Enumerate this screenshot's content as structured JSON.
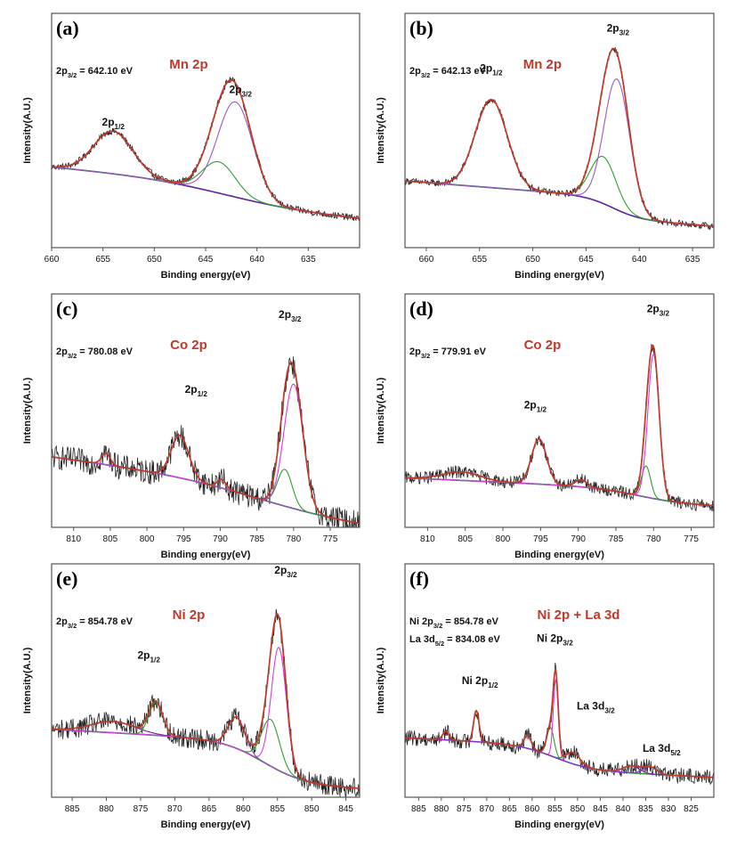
{
  "chart_data": [
    {
      "type": "line",
      "panel": "(a)",
      "title": "Mn 2p",
      "notes": [
        [
          "2p",
          "3/2",
          "= 642.10 eV"
        ]
      ],
      "xlabel": "Binding energy(eV)",
      "ylabel": "Intensity(A.U.)",
      "xlim": [
        660,
        630
      ],
      "xticks": [
        660,
        655,
        650,
        645,
        640,
        635
      ],
      "noise": 0.015,
      "background": {
        "a": 0.57,
        "b": 0.2,
        "step": 0.17,
        "center": 643,
        "width": 4
      },
      "peaks": [
        {
          "name": "2p1/2",
          "center": 654.0,
          "height": 0.3,
          "width": 1.9
        },
        {
          "name": "2p3/2 satellite",
          "center": 643.7,
          "height": 0.22,
          "width": 1.6
        },
        {
          "name": "2p3/2",
          "center": 642.1,
          "height": 0.67,
          "width": 1.7
        }
      ],
      "peak_labels": [
        {
          "text": [
            "2p",
            "1/2"
          ],
          "x": 654.0,
          "y": 0.86
        },
        {
          "text": [
            "2p",
            "3/2"
          ],
          "x": 641.6,
          "y": 1.09
        }
      ]
    },
    {
      "type": "line",
      "panel": "(b)",
      "title": "Mn 2p",
      "notes": [
        [
          "2p",
          "3/2",
          "= 642.13 eV"
        ]
      ],
      "xlabel": "Binding energy(eV)",
      "ylabel": "Intensity(A.U.)",
      "xlim": [
        662,
        633
      ],
      "xticks": [
        660,
        655,
        650,
        645,
        640,
        635
      ],
      "noise": 0.015,
      "background": {
        "a": 0.47,
        "b": 0.17,
        "step": 0.15,
        "center": 642.5,
        "width": 1.3
      },
      "peaks": [
        {
          "name": "2p1/2",
          "center": 653.9,
          "height": 0.62,
          "width": 1.5
        },
        {
          "name": "2p3/2 satellite",
          "center": 643.4,
          "height": 0.33,
          "width": 1.2
        },
        {
          "name": "2p3/2",
          "center": 642.1,
          "height": 0.92,
          "width": 1.2
        }
      ],
      "peak_labels": [
        {
          "text": [
            "2p",
            "1/2"
          ],
          "x": 653.9,
          "y": 1.24
        },
        {
          "text": [
            "2p",
            "3/2"
          ],
          "x": 642.0,
          "y": 1.52
        }
      ]
    },
    {
      "type": "line",
      "panel": "(c)",
      "title": "Co 2p",
      "notes": [
        [
          "2p",
          "3/2",
          "= 780.08 eV"
        ]
      ],
      "xlabel": "Binding energy(eV)",
      "ylabel": "Intensity(A.U.)",
      "xlim": [
        813,
        771
      ],
      "xticks": [
        810,
        805,
        800,
        795,
        790,
        785,
        780,
        775
      ],
      "noise": 0.055,
      "background": {
        "a": 0.5,
        "b": 0.29,
        "step": 0.2,
        "center": 785,
        "width": 6
      },
      "peaks": [
        {
          "name": "satellite",
          "center": 805.6,
          "height": 0.08,
          "width": 0.6
        },
        {
          "name": "2p1/2",
          "center": 795.5,
          "height": 0.3,
          "width": 1.2
        },
        {
          "name": "satellite",
          "center": 789.8,
          "height": 0.06,
          "width": 0.6
        },
        {
          "name": "2p3/2 shoulder",
          "center": 781.2,
          "height": 0.26,
          "width": 1.0
        },
        {
          "name": "2p3/2",
          "center": 780.0,
          "height": 0.88,
          "width": 1.3
        }
      ],
      "peak_labels": [
        {
          "text": [
            "2p",
            "1/2"
          ],
          "x": 793.3,
          "y": 0.95
        },
        {
          "text": [
            "2p",
            "3/2"
          ],
          "x": 780.5,
          "y": 1.48
        }
      ]
    },
    {
      "type": "line",
      "panel": "(d)",
      "title": "Co 2p",
      "notes": [
        [
          "2p",
          "3/2",
          "= 779.91 eV"
        ]
      ],
      "xlabel": "Binding energy(eV)",
      "ylabel": "Intensity(A.U.)",
      "xlim": [
        813,
        772
      ],
      "xticks": [
        810,
        805,
        800,
        795,
        790,
        785,
        780,
        775
      ],
      "noise": 0.028,
      "background": {
        "a": 0.35,
        "b": 0.1,
        "step": 0.1,
        "center": 782,
        "width": 3
      },
      "peaks": [
        {
          "name": "satellite",
          "center": 805.5,
          "height": 0.06,
          "width": 2.5
        },
        {
          "name": "2p1/2",
          "center": 795.2,
          "height": 0.32,
          "width": 1.0
        },
        {
          "name": "satellite",
          "center": 789.6,
          "height": 0.05,
          "width": 0.8
        },
        {
          "name": "2p3/2 shoulder",
          "center": 781.0,
          "height": 0.22,
          "width": 0.6
        },
        {
          "name": "2p3/2",
          "center": 780.0,
          "height": 1.02,
          "width": 0.75
        }
      ],
      "peak_labels": [
        {
          "text": [
            "2p",
            "1/2"
          ],
          "x": 795.7,
          "y": 0.84
        },
        {
          "text": [
            "2p",
            "3/2"
          ],
          "x": 779.4,
          "y": 1.52
        }
      ]
    },
    {
      "type": "line",
      "panel": "(e)",
      "title": "Ni 2p",
      "notes": [
        [
          "2p",
          "3/2",
          "= 854.78 eV"
        ]
      ],
      "xlabel": "Binding energy(eV)",
      "ylabel": "Intensity(A.U.)",
      "xlim": [
        888,
        843
      ],
      "xticks": [
        885,
        880,
        875,
        870,
        865,
        860,
        855,
        850,
        845
      ],
      "noise": 0.045,
      "background": {
        "a": 0.48,
        "b": 0.12,
        "step": 0.3,
        "center": 857,
        "width": 3
      },
      "peaks": [
        {
          "name": "satellite",
          "center": 879.0,
          "height": 0.08,
          "width": 3.2
        },
        {
          "name": "2p1/2",
          "center": 872.8,
          "height": 0.23,
          "width": 1.0
        },
        {
          "name": "satellite",
          "center": 861.0,
          "height": 0.22,
          "width": 1.2
        },
        {
          "name": "2p3/2 shoulder",
          "center": 856.0,
          "height": 0.33,
          "width": 1.3
        },
        {
          "name": "2p3/2",
          "center": 854.8,
          "height": 0.87,
          "width": 1.1
        }
      ],
      "peak_labels": [
        {
          "text": [
            "2p",
            "1/2"
          ],
          "x": 873.8,
          "y": 0.98
        },
        {
          "text": [
            "2p",
            "3/2"
          ],
          "x": 853.8,
          "y": 1.58
        }
      ]
    },
    {
      "type": "line",
      "panel": "(f)",
      "title": "Ni 2p + La 3d",
      "notes": [
        [
          "Ni 2p",
          "3/2",
          "= 854.78 eV"
        ],
        [
          "La 3d",
          "5/2",
          "= 834.08 eV"
        ]
      ],
      "xlabel": "Binding energy(eV)",
      "ylabel": "Intensity(A.U.)",
      "xlim": [
        888,
        820
      ],
      "xticks": [
        885,
        880,
        875,
        870,
        865,
        860,
        855,
        850,
        845,
        840,
        835,
        830,
        825
      ],
      "noise": 0.035,
      "background": {
        "a": 0.42,
        "b": 0.11,
        "step": 0.17,
        "center": 855,
        "width": 4
      },
      "peaks": [
        {
          "name": "satellite",
          "center": 879.0,
          "height": 0.06,
          "width": 0.7
        },
        {
          "name": "Ni 2p1/2",
          "center": 872.3,
          "height": 0.22,
          "width": 0.6
        },
        {
          "name": "satellite",
          "center": 861.0,
          "height": 0.09,
          "width": 0.8
        },
        {
          "name": "Ni 2p3/2 shoulder",
          "center": 856.0,
          "height": 0.2,
          "width": 0.8
        },
        {
          "name": "Ni 2p3/2",
          "center": 854.8,
          "height": 0.55,
          "width": 0.55
        },
        {
          "name": "La 3d3/2",
          "center": 851.0,
          "height": 0.08,
          "width": 1.5
        },
        {
          "name": "La 3d",
          "center": 838.2,
          "height": 0.05,
          "width": 1.8
        },
        {
          "name": "La 3d5/2",
          "center": 834.1,
          "height": 0.05,
          "width": 1.5
        }
      ],
      "peak_labels": [
        {
          "text": [
            "Ni 2p",
            "1/2"
          ],
          "x": 871.5,
          "y": 0.8
        },
        {
          "text": [
            "Ni 2p",
            "3/2"
          ],
          "x": 855.0,
          "y": 1.1
        },
        {
          "text": [
            "La 3d",
            "3/2"
          ],
          "x": 846.0,
          "y": 0.62
        },
        {
          "text": [
            "La 3d",
            "5/2"
          ],
          "x": 831.5,
          "y": 0.32
        }
      ]
    }
  ],
  "colors": {
    "raw": "#222222",
    "envelope": "#c0392b",
    "background_line": "#1f2a8c",
    "peak_palette": [
      "#7b1fa2",
      "#2e9e2e",
      "#9b59b6",
      "#2e9e2e",
      "#d63fd6",
      "#2e9e2e",
      "#7b1fa2",
      "#8a2be2"
    ],
    "panel_f_background": "#4aa3c7",
    "title": "#c0392b",
    "frame": "#555555"
  }
}
